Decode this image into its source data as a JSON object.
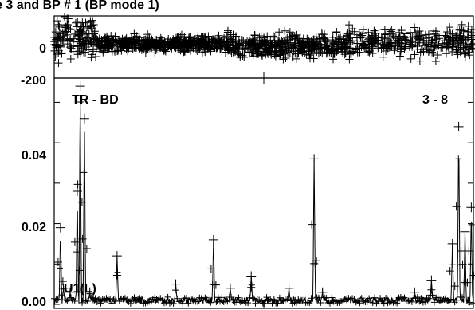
{
  "title": "e 3 and BP # 1 (BP mode 1)",
  "chart_data": [
    {
      "type": "scatter",
      "panel": "phase",
      "ylim": [
        -200,
        200
      ],
      "yticks": [
        "0",
        "-200"
      ],
      "xlim": [
        0,
        1000
      ],
      "grid": false,
      "series": [
        {
          "segments": [
            {
              "x": [
                0,
                100
              ],
              "center": 60,
              "amp": 180,
              "count": 150
            },
            {
              "x": [
                100,
                400
              ],
              "center": 20,
              "amp": 70,
              "count": 520
            },
            {
              "x": [
                400,
                700
              ],
              "center": 10,
              "amp": 110,
              "count": 450
            },
            {
              "x": [
                700,
                1000
              ],
              "center": 30,
              "amp": 130,
              "count": 320
            }
          ]
        }
      ]
    },
    {
      "type": "line",
      "panel": "amplitude",
      "ylim": [
        0,
        0.056
      ],
      "yticks": [
        "0.04",
        "0.02",
        "0.00"
      ],
      "xlim": [
        0,
        1000
      ],
      "grid": false,
      "label_left": "TR - BD",
      "label_right": "3 - 8",
      "baseline_label": "U1(L)",
      "baseline": {
        "level": 0.001,
        "noise": 0.0008
      },
      "peaks": [
        {
          "x": 15,
          "y": 0.019
        },
        {
          "x": 22,
          "y": 0.004
        },
        {
          "x": 38,
          "y": 0.003
        },
        {
          "x": 55,
          "y": 0.028
        },
        {
          "x": 62,
          "y": 0.054
        },
        {
          "x": 72,
          "y": 0.046
        },
        {
          "x": 85,
          "y": 0.003
        },
        {
          "x": 150,
          "y": 0.012
        },
        {
          "x": 290,
          "y": 0.005
        },
        {
          "x": 380,
          "y": 0.016
        },
        {
          "x": 420,
          "y": 0.004
        },
        {
          "x": 470,
          "y": 0.007
        },
        {
          "x": 560,
          "y": 0.004
        },
        {
          "x": 620,
          "y": 0.036
        },
        {
          "x": 640,
          "y": 0.003
        },
        {
          "x": 860,
          "y": 0.003
        },
        {
          "x": 900,
          "y": 0.006
        },
        {
          "x": 950,
          "y": 0.015
        },
        {
          "x": 965,
          "y": 0.044
        },
        {
          "x": 980,
          "y": 0.018
        },
        {
          "x": 995,
          "y": 0.024
        }
      ]
    }
  ]
}
